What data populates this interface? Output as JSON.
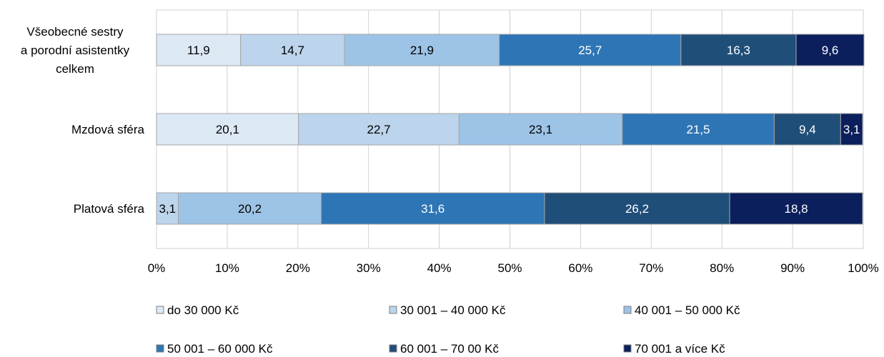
{
  "chart_data": {
    "type": "bar",
    "orientation": "horizontal",
    "stacked": true,
    "categories": [
      [
        "Všeobecné sestry",
        "a porodní asistentky",
        "celkem"
      ],
      [
        "Mzdová sféra"
      ],
      [
        "Platová sféra"
      ]
    ],
    "series": [
      {
        "name": "do 30 000 Kč",
        "values": [
          11.9,
          20.1,
          0
        ],
        "color": "#dde8f5"
      },
      {
        "name": "30 001 – 40 000 Kč",
        "values": [
          14.7,
          22.7,
          3.1
        ],
        "color": "#bcd4ec"
      },
      {
        "name": "40 001 – 50 000 Kč",
        "values": [
          21.9,
          23.1,
          20.2
        ],
        "color": "#9dc3e6"
      },
      {
        "name": "50 001 – 60 000 Kč",
        "values": [
          25.7,
          21.5,
          31.6
        ],
        "color": "#2e75b6"
      },
      {
        "name": "60 001 – 70 00 Kč",
        "values": [
          16.3,
          9.4,
          26.2
        ],
        "color": "#1f4e79"
      },
      {
        "name": "70 001 a více Kč",
        "values": [
          9.6,
          3.1,
          18.8
        ],
        "color": "#0b1f5c"
      }
    ],
    "xlim": [
      0,
      100
    ],
    "x_ticks": [
      "0%",
      "10%",
      "20%",
      "30%",
      "40%",
      "50%",
      "60%",
      "70%",
      "80%",
      "90%",
      "100%"
    ],
    "grid": true,
    "legend_position": "bottom",
    "title": "",
    "xlabel": "",
    "ylabel": ""
  }
}
